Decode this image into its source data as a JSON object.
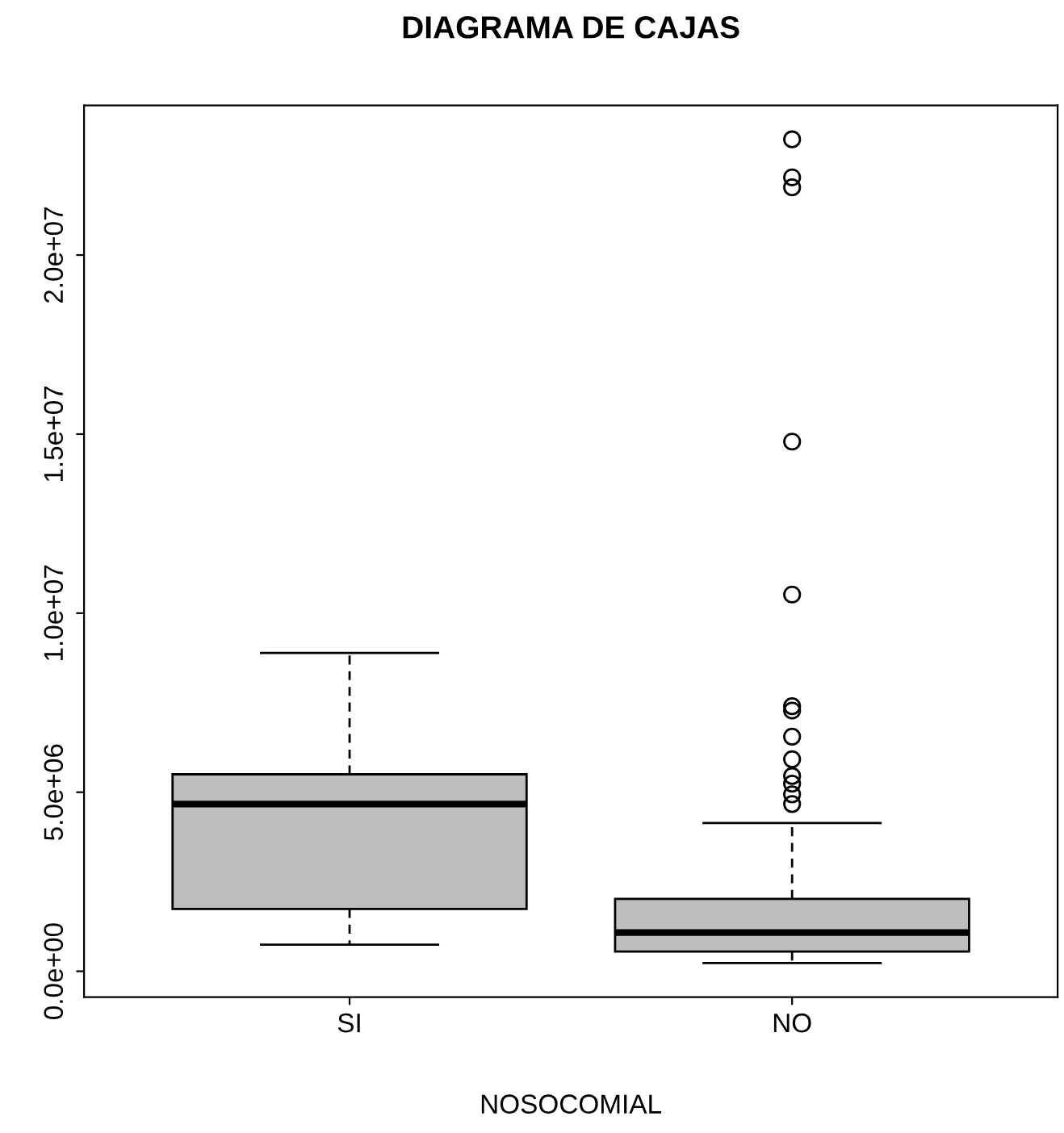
{
  "chart_data": {
    "type": "box",
    "title": "DIAGRAMA DE CAJAS",
    "xlabel": "NOSOCOMIAL",
    "categories": [
      "SI",
      "NO"
    ],
    "boxes": [
      {
        "low": 740000,
        "q1": 1740000,
        "median": 4670000,
        "q3": 5500000,
        "high": 8890000
      },
      {
        "low": 230000,
        "q1": 550000,
        "median": 1080000,
        "q3": 2020000,
        "high": 4140000,
        "outliers": [
          23230000,
          22170000,
          21890000,
          14790000,
          10520000,
          7400000,
          7280000,
          6550000,
          5920000,
          5450000,
          5240000,
          4940000,
          4670000
        ]
      }
    ],
    "color": "#bebebe",
    "ylim": [
      -720000,
      24180000
    ],
    "yticks": [
      {
        "value": 0,
        "label": "0.0e+00"
      },
      {
        "value": 5000000,
        "label": "5.0e+06"
      },
      {
        "value": 10000000,
        "label": "1.0e+07"
      },
      {
        "value": 15000000,
        "label": "1.5e+07"
      },
      {
        "value": 20000000,
        "label": "2.0e+07"
      }
    ],
    "grid": false,
    "legend": false
  }
}
